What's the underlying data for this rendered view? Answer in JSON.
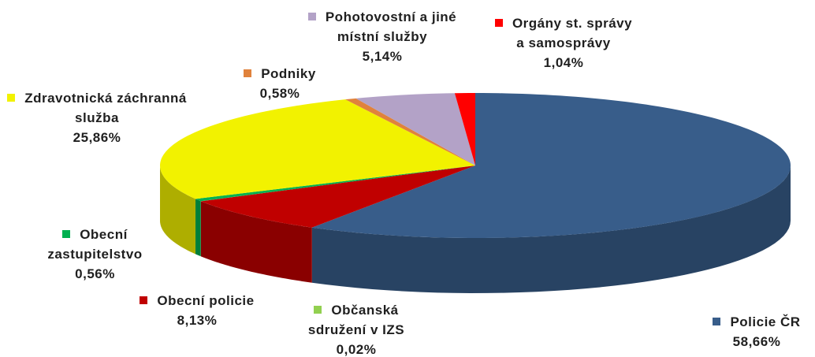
{
  "chart_data": {
    "type": "pie",
    "style": "3d",
    "categories": [
      "Policie ČR",
      "Obecní policie",
      "Občanská sdružení v IZS",
      "Obecní zastupitelstvo",
      "Zdravotnická záchranná služba",
      "Podniky",
      "Pohotovostní a jiné místní služby",
      "Orgány st. správy a samosprávy"
    ],
    "values": [
      58.66,
      8.13,
      0.02,
      0.56,
      25.86,
      0.58,
      5.14,
      1.04
    ],
    "value_labels": [
      "58,66%",
      "8,13%",
      "0,02%",
      "0,56%",
      "25,86%",
      "0,58%",
      "5,14%",
      "1,04%"
    ],
    "colors": [
      "#385d8a",
      "#c00000",
      "#92d050",
      "#00b050",
      "#f2f200",
      "#e0823c",
      "#b3a2c7",
      "#ff0000"
    ]
  }
}
